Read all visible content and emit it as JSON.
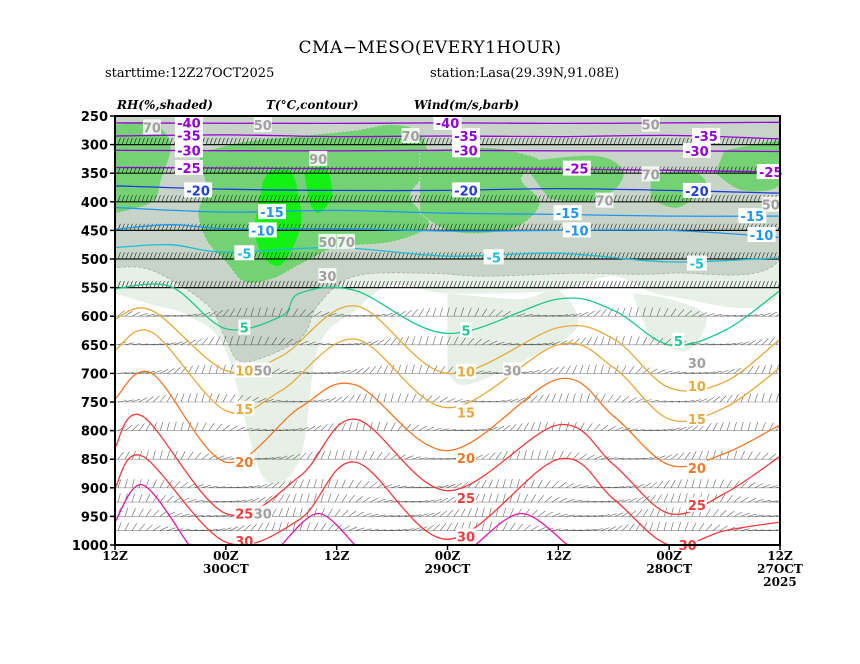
{
  "header": {
    "title": "CMA−MESO(EVERY1HOUR)",
    "starttime": "starttime:12Z27OCT2025",
    "station": "station:Lasa(29.39N,91.08E)"
  },
  "legend": {
    "rh": "RH(%,shaded)",
    "temp": "T(°C,contour)",
    "wind": "Wind(m/s,barb)"
  },
  "colors": {
    "rh_30_50": "#e6f0e6",
    "rh_50_70": "#c8d4c8",
    "rh_70_90": "#74d274",
    "rh_90": "#14f014",
    "t_minus40_25": "#9400d3",
    "t_minus20": "#1f3ee0",
    "t_minus15_10": "#1e96f0",
    "t_minus5": "#1ebed2",
    "t_5": "#1ec88c",
    "t_10_15": "#e6aa3c",
    "t_20": "#f07828",
    "t_25_30": "#f03c3c",
    "t_35": "#e614aa"
  },
  "chart_data": {
    "type": "heatmap",
    "title": "CMA−MESO(EVERY1HOUR)",
    "xlabel": "",
    "ylabel": "",
    "y_axis": {
      "range": [
        1000,
        250
      ],
      "ticks": [
        "250",
        "300",
        "350",
        "400",
        "450",
        "500",
        "550",
        "600",
        "650",
        "700",
        "750",
        "800",
        "850",
        "900",
        "950",
        "1000"
      ]
    },
    "x_axis": {
      "range_hours": [
        0,
        72
      ],
      "ticks": [
        {
          "h": 0,
          "line1": "12Z",
          "line2": "",
          "line3": ""
        },
        {
          "h": 12,
          "line1": "00Z",
          "line2": "30OCT",
          "line3": ""
        },
        {
          "h": 24,
          "line1": "12Z",
          "line2": "",
          "line3": ""
        },
        {
          "h": 36,
          "line1": "00Z",
          "line2": "29OCT",
          "line3": ""
        },
        {
          "h": 48,
          "line1": "12Z",
          "line2": "",
          "line3": ""
        },
        {
          "h": 60,
          "line1": "00Z",
          "line2": "28OCT",
          "line3": ""
        },
        {
          "h": 72,
          "line1": "12Z",
          "line2": "27OCT",
          "line3": "2025"
        }
      ]
    },
    "temperature_contours": [
      {
        "value": -40,
        "label": "-40",
        "color": "#9400d3",
        "points": [
          [
            0,
            262
          ],
          [
            24,
            263
          ],
          [
            36,
            262
          ],
          [
            48,
            263
          ],
          [
            60,
            262
          ],
          [
            72,
            261
          ]
        ],
        "labels_at": [
          [
            8,
            262
          ],
          [
            36,
            262
          ]
        ]
      },
      {
        "value": -35,
        "label": "-35",
        "color": "#9400d3",
        "points": [
          [
            0,
            285
          ],
          [
            12,
            283
          ],
          [
            24,
            286
          ],
          [
            36,
            285
          ],
          [
            48,
            286
          ],
          [
            60,
            284
          ],
          [
            72,
            290
          ]
        ],
        "labels_at": [
          [
            8,
            284
          ],
          [
            38,
            285
          ],
          [
            64,
            285
          ]
        ]
      },
      {
        "value": -30,
        "label": "-30",
        "color": "#9400d3",
        "points": [
          [
            0,
            310
          ],
          [
            24,
            311
          ],
          [
            36,
            310
          ],
          [
            48,
            311
          ],
          [
            60,
            311
          ],
          [
            72,
            312
          ]
        ],
        "labels_at": [
          [
            8,
            310
          ],
          [
            38,
            310
          ],
          [
            63,
            311
          ]
        ]
      },
      {
        "value": -25,
        "label": "-25",
        "color": "#9400d3",
        "points": [
          [
            0,
            340
          ],
          [
            24,
            342
          ],
          [
            36,
            342
          ],
          [
            48,
            343
          ],
          [
            60,
            345
          ],
          [
            72,
            348
          ]
        ],
        "labels_at": [
          [
            8,
            341
          ],
          [
            50,
            342
          ],
          [
            71,
            348
          ]
        ]
      },
      {
        "value": -20,
        "label": "-20",
        "color": "#1f3ee0",
        "points": [
          [
            0,
            372
          ],
          [
            12,
            378
          ],
          [
            24,
            380
          ],
          [
            36,
            380
          ],
          [
            48,
            377
          ],
          [
            60,
            380
          ],
          [
            72,
            385
          ]
        ],
        "labels_at": [
          [
            9,
            380
          ],
          [
            38,
            380
          ],
          [
            63,
            381
          ]
        ]
      },
      {
        "value": -15,
        "label": "-15",
        "color": "#1e96f0",
        "points": [
          [
            0,
            410
          ],
          [
            12,
            418
          ],
          [
            24,
            415
          ],
          [
            36,
            420
          ],
          [
            48,
            422
          ],
          [
            60,
            425
          ],
          [
            72,
            425
          ]
        ],
        "labels_at": [
          [
            17,
            418
          ],
          [
            49,
            420
          ],
          [
            69,
            425
          ]
        ]
      },
      {
        "value": -10,
        "label": "-10",
        "color": "#1e96f0",
        "points": [
          [
            0,
            448
          ],
          [
            6,
            440
          ],
          [
            12,
            447
          ],
          [
            24,
            447
          ],
          [
            36,
            451
          ],
          [
            48,
            450
          ],
          [
            60,
            450
          ],
          [
            72,
            462
          ]
        ],
        "labels_at": [
          [
            16,
            450
          ],
          [
            50,
            450
          ],
          [
            70,
            458
          ]
        ]
      },
      {
        "value": -5,
        "label": "-5",
        "color": "#1ebed2",
        "points": [
          [
            0,
            480
          ],
          [
            6,
            475
          ],
          [
            12,
            488
          ],
          [
            24,
            480
          ],
          [
            36,
            495
          ],
          [
            48,
            490
          ],
          [
            60,
            505
          ],
          [
            72,
            498
          ]
        ],
        "labels_at": [
          [
            14,
            490
          ],
          [
            41,
            497
          ],
          [
            63,
            508
          ]
        ]
      },
      {
        "value": 5,
        "label": "5",
        "color": "#1ec88c",
        "points": [
          [
            0,
            552
          ],
          [
            6,
            548
          ],
          [
            12,
            622
          ],
          [
            18,
            600
          ],
          [
            20,
            560
          ],
          [
            26,
            555
          ],
          [
            36,
            630
          ],
          [
            48,
            570
          ],
          [
            54,
            590
          ],
          [
            60,
            650
          ],
          [
            66,
            625
          ],
          [
            72,
            555
          ]
        ],
        "labels_at": [
          [
            14,
            620
          ],
          [
            38,
            625
          ],
          [
            61,
            643
          ]
        ]
      },
      {
        "value": 10,
        "label": "10",
        "color": "#e6aa3c",
        "points": [
          [
            0,
            605
          ],
          [
            4,
            590
          ],
          [
            12,
            695
          ],
          [
            18,
            670
          ],
          [
            26,
            582
          ],
          [
            36,
            700
          ],
          [
            48,
            620
          ],
          [
            54,
            640
          ],
          [
            60,
            725
          ],
          [
            66,
            715
          ],
          [
            72,
            640
          ]
        ],
        "labels_at": [
          [
            14,
            695
          ],
          [
            38,
            697
          ],
          [
            63,
            722
          ]
        ]
      },
      {
        "value": 15,
        "label": "15",
        "color": "#e6aa3c",
        "points": [
          [
            0,
            660
          ],
          [
            4,
            628
          ],
          [
            12,
            765
          ],
          [
            18,
            730
          ],
          [
            26,
            640
          ],
          [
            36,
            760
          ],
          [
            48,
            650
          ],
          [
            54,
            690
          ],
          [
            60,
            780
          ],
          [
            66,
            760
          ],
          [
            72,
            690
          ]
        ],
        "labels_at": [
          [
            14,
            762
          ],
          [
            38,
            768
          ],
          [
            63,
            780
          ]
        ]
      },
      {
        "value": 20,
        "label": "20",
        "color": "#f07828",
        "points": [
          [
            0,
            745
          ],
          [
            4,
            700
          ],
          [
            12,
            855
          ],
          [
            20,
            760
          ],
          [
            26,
            720
          ],
          [
            36,
            835
          ],
          [
            48,
            710
          ],
          [
            54,
            775
          ],
          [
            60,
            860
          ],
          [
            66,
            840
          ],
          [
            72,
            790
          ]
        ],
        "labels_at": [
          [
            14,
            855
          ],
          [
            38,
            848
          ],
          [
            63,
            865
          ]
        ]
      },
      {
        "value": 25,
        "label": "25",
        "color": "#f03c3c",
        "points": [
          [
            0,
            830
          ],
          [
            3,
            775
          ],
          [
            12,
            945
          ],
          [
            20,
            880
          ],
          [
            26,
            780
          ],
          [
            36,
            905
          ],
          [
            48,
            790
          ],
          [
            54,
            860
          ],
          [
            60,
            945
          ],
          [
            66,
            910
          ],
          [
            72,
            845
          ]
        ],
        "labels_at": [
          [
            14,
            945
          ],
          [
            38,
            918
          ],
          [
            63,
            930
          ]
        ]
      },
      {
        "value": 30,
        "label": "30",
        "color": "#f03c3c",
        "points": [
          [
            0,
            900
          ],
          [
            3,
            845
          ],
          [
            12,
            995
          ],
          [
            20,
            955
          ],
          [
            26,
            855
          ],
          [
            36,
            990
          ],
          [
            48,
            850
          ],
          [
            54,
            920
          ],
          [
            60,
            1000
          ],
          [
            66,
            975
          ],
          [
            72,
            960
          ]
        ],
        "labels_at": [
          [
            14,
            993
          ],
          [
            38,
            985
          ],
          [
            62,
            1000
          ]
        ]
      },
      {
        "value": 35,
        "label": "",
        "color": "#e614aa",
        "points": [
          [
            0,
            960
          ],
          [
            3,
            895
          ],
          [
            8,
            1000
          ]
        ],
        "labels_at": []
      },
      {
        "value": 35,
        "label": "",
        "color": "#e614aa",
        "points": [
          [
            18,
            1000
          ],
          [
            22,
            945
          ],
          [
            26,
            1000
          ]
        ],
        "labels_at": []
      },
      {
        "value": 35,
        "label": "",
        "color": "#e614aa",
        "points": [
          [
            39,
            1000
          ],
          [
            44,
            945
          ],
          [
            49,
            1000
          ]
        ],
        "labels_at": []
      }
    ],
    "rh_region_labels": [
      {
        "label": "70",
        "h": 4,
        "p": 270
      },
      {
        "label": "50",
        "h": 16,
        "p": 266
      },
      {
        "label": "70",
        "h": 32,
        "p": 285
      },
      {
        "label": "90",
        "h": 22,
        "p": 325
      },
      {
        "label": "50",
        "h": 23,
        "p": 470
      },
      {
        "label": "70",
        "h": 25,
        "p": 470
      },
      {
        "label": "30",
        "h": 23,
        "p": 530
      },
      {
        "label": "50",
        "h": 58,
        "p": 265
      },
      {
        "label": "70",
        "h": 58,
        "p": 352
      },
      {
        "label": "70",
        "h": 53,
        "p": 398
      },
      {
        "label": "50",
        "h": 71,
        "p": 405
      },
      {
        "label": "30",
        "h": 43,
        "p": 695
      },
      {
        "label": "30",
        "h": 63,
        "p": 682
      },
      {
        "label": "50",
        "h": 16,
        "p": 695
      },
      {
        "label": "30",
        "h": 16,
        "p": 945
      }
    ],
    "wind_levels": [
      300,
      350,
      400,
      450,
      500,
      550,
      600,
      650,
      700,
      750,
      800,
      850,
      900,
      925,
      950,
      975
    ]
  }
}
